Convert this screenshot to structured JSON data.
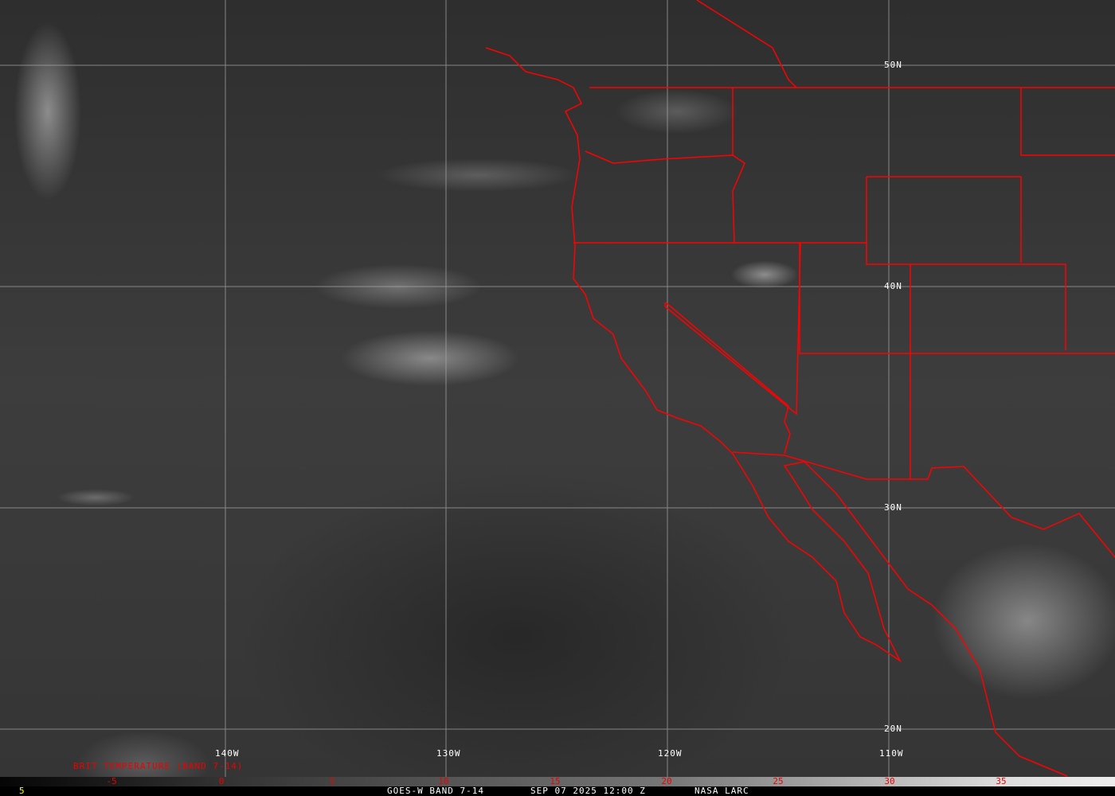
{
  "title": "GOES-W BAND 7-14",
  "datetime": "SEP 07 2025 12:00 Z",
  "credit": "NASA LARC",
  "frame_number": "5",
  "colorbar_label": "BRIT TEMPERATURE (BAND 7-14)",
  "colorbar_ticks": [
    "-5",
    "0",
    "5",
    "10",
    "15",
    "20",
    "25",
    "30",
    "35"
  ],
  "longitude_labels": [
    "140W",
    "130W",
    "120W",
    "110W"
  ],
  "latitude_labels": [
    "50N",
    "40N",
    "30N",
    "20N"
  ],
  "colors": {
    "boundaries": "#ff0000",
    "grid": "#aaaaaa",
    "ticks": "#e00000",
    "frame": "#ffff00"
  }
}
